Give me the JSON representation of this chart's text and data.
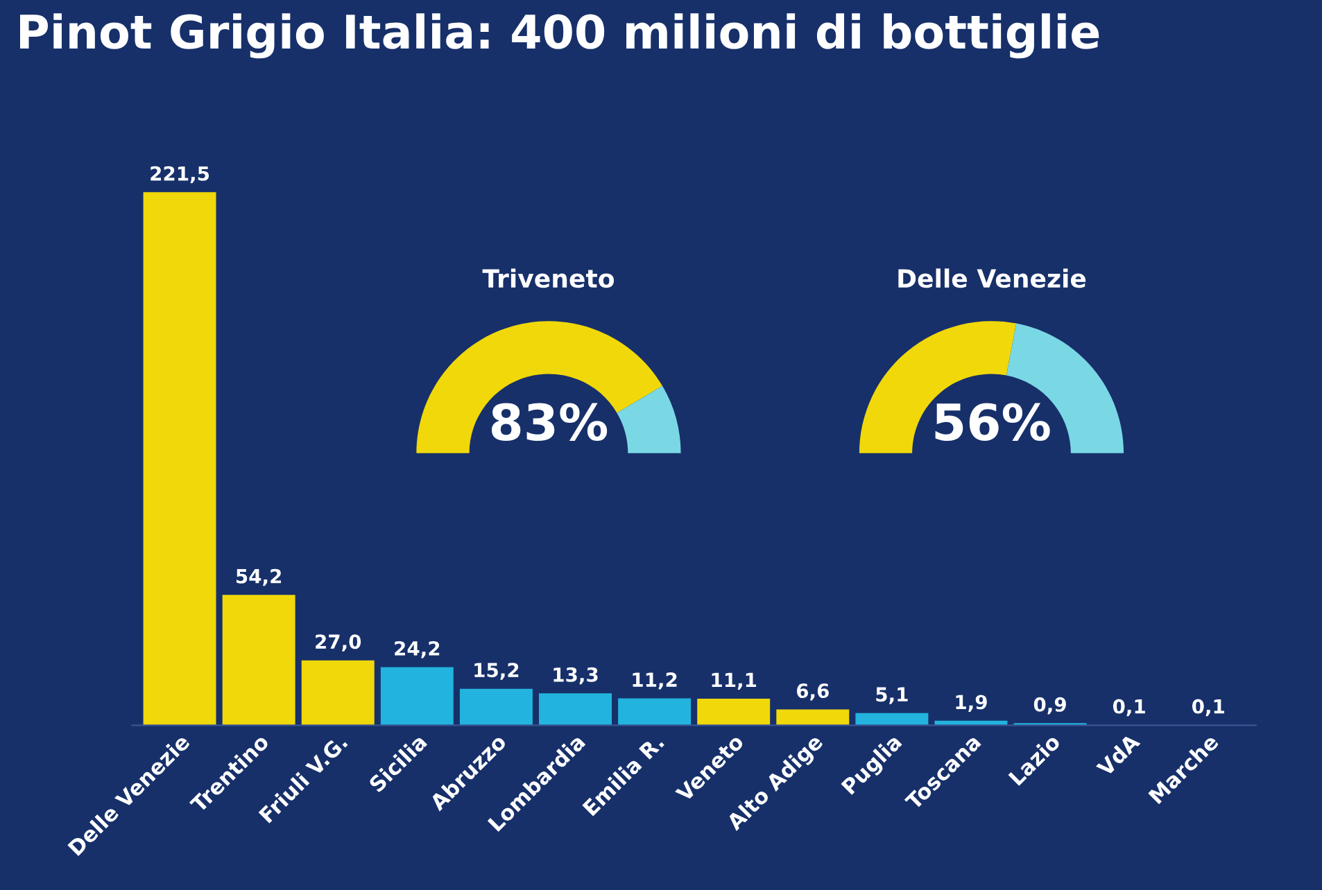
{
  "chart_data": [
    {
      "type": "bar",
      "title": "Pinot Grigio Italia: 400 milioni di bottiglie",
      "categories": [
        "Delle Venezie",
        "Trentino",
        "Friuli V.G.",
        "Sicilia",
        "Abruzzo",
        "Lombardia",
        "Emilia R.",
        "Veneto",
        "Alto Adige",
        "Puglia",
        "Toscana",
        "Lazio",
        "VdA",
        "Marche"
      ],
      "values": [
        221.5,
        54.2,
        27.0,
        24.2,
        15.2,
        13.3,
        11.2,
        11.1,
        6.6,
        5.1,
        1.9,
        0.9,
        0.1,
        0.1
      ],
      "value_labels": [
        "221,5",
        "54,2",
        "27,0",
        "24,2",
        "15,2",
        "13,3",
        "11,2",
        "11,1",
        "6,6",
        "5,1",
        "1,9",
        "0,9",
        "0,1",
        "0,1"
      ],
      "colors": [
        "#f0d80a",
        "#f0d80a",
        "#f0d80a",
        "#22b4de",
        "#22b4de",
        "#22b4de",
        "#22b4de",
        "#f0d80a",
        "#f0d80a",
        "#22b4de",
        "#22b4de",
        "#22b4de",
        "#22b4de",
        "#22b4de"
      ]
    },
    {
      "type": "donut",
      "title": "Triveneto",
      "categories": [
        null,
        null
      ],
      "values": [
        83,
        17
      ],
      "colors": [
        "#f0d80a",
        "#7ad8e4"
      ],
      "value_labels": [
        "83%",
        null
      ]
    },
    {
      "type": "donut",
      "title": "Delle Venezie",
      "categories": [
        null,
        null
      ],
      "values": [
        56,
        44
      ],
      "colors": [
        "#f0d80a",
        "#7ad8e4"
      ],
      "value_labels": [
        "56%",
        null
      ]
    }
  ]
}
